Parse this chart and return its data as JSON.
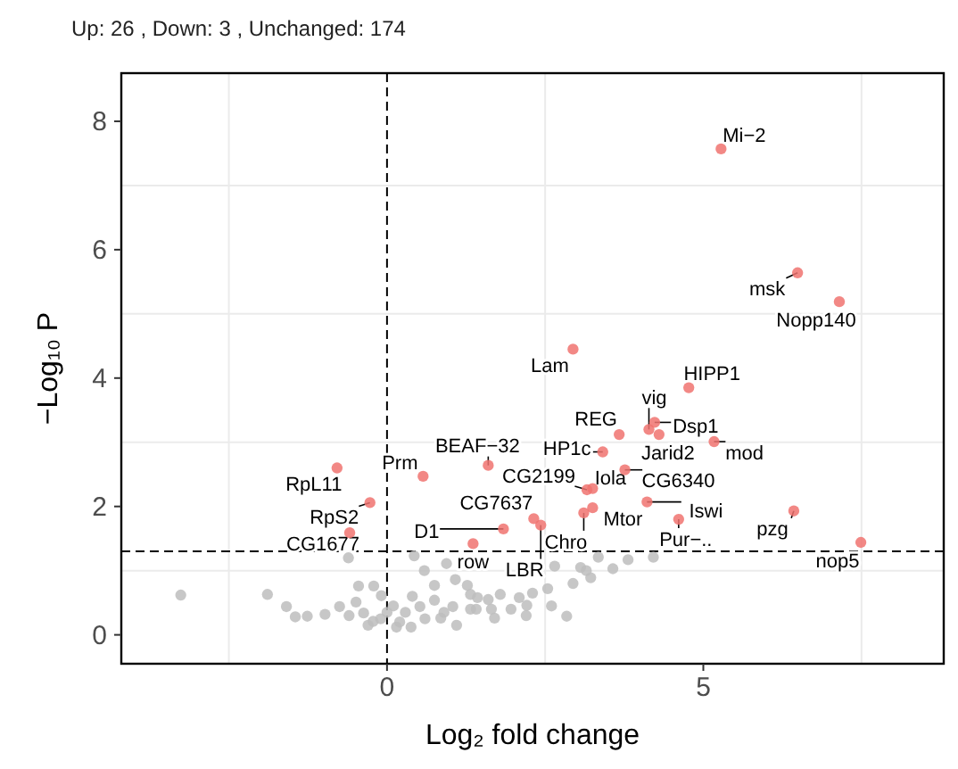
{
  "chart_data": {
    "type": "scatter",
    "subtitle": "Up: 26 ,  Down: 3 ,  Unchanged: 174",
    "xlabel": "Log₂ fold change",
    "ylabel": "−Log₁₀ P",
    "xlim": [
      -4.2,
      8.8
    ],
    "ylim": [
      -0.45,
      8.75
    ],
    "xticks": [
      {
        "value": -2.5,
        "label": null
      },
      0,
      {
        "value": 2.5,
        "label": null
      },
      5,
      {
        "value": 7.5,
        "label": null
      }
    ],
    "yticks": [
      0,
      {
        "value": 1,
        "label": null
      },
      2,
      {
        "value": 3,
        "label": null
      },
      4,
      {
        "value": 5,
        "label": null
      },
      6,
      {
        "value": 7,
        "label": null
      },
      8
    ],
    "grid": true,
    "marker": "circle",
    "ref_lines": [
      {
        "axis": "x",
        "value": 0,
        "line_style": "dashed"
      },
      {
        "axis": "y",
        "value": 1.3,
        "line_style": "dashed"
      }
    ],
    "series": [
      {
        "color": "#bdbdbd",
        "x": [
          -3.26,
          -1.89,
          -1.59,
          -1.45,
          -1.26,
          -0.98,
          -0.75,
          -0.61,
          -0.45,
          -0.21,
          -0.49,
          -0.37,
          -0.09,
          -0.22,
          0,
          0.15,
          0.29,
          0.43,
          0.59,
          0.75,
          0.94,
          1.08,
          0.52,
          0.75,
          1.04,
          0.38,
          0.85,
          1.32,
          1.41,
          2.65,
          3.06,
          3.34,
          3.57,
          3.81,
          4.21,
          2.94,
          3.22,
          3.15,
          2.54,
          2.3,
          2.09,
          2.21,
          1.96,
          1.79,
          1.65,
          1.43,
          1.32,
          1.7,
          2.84,
          1.27,
          -0.3,
          0.1,
          0.2,
          -0.1,
          0.6,
          0.9,
          1.1,
          -0.6,
          0.4,
          1.6,
          2.2,
          2.6
        ],
        "values": [
          0.62,
          0.63,
          0.44,
          0.28,
          0.29,
          0.32,
          0.44,
          1.2,
          0.76,
          0.76,
          0.51,
          0.34,
          0.61,
          0.21,
          0.35,
          0.12,
          0.35,
          1.23,
          1.0,
          0.77,
          1.11,
          0.86,
          0.44,
          0.54,
          0.44,
          0.12,
          0.26,
          0.63,
          0.4,
          1.07,
          1.05,
          1.21,
          1.03,
          1.17,
          1.21,
          0.8,
          0.89,
          1.0,
          0.72,
          0.65,
          0.58,
          0.46,
          0.4,
          0.63,
          0.4,
          0.58,
          0.4,
          0.26,
          0.29,
          0.77,
          0.15,
          0.45,
          0.2,
          0.25,
          0.25,
          0.35,
          0.15,
          0.3,
          0.6,
          0.55,
          0.3,
          0.45
        ]
      },
      {
        "color": "#f07370",
        "x": [
          5.28,
          6.49,
          7.15,
          2.94,
          4.77,
          4.14,
          4.23,
          4.3,
          5.17,
          3.67,
          3.41,
          3.76,
          3.25,
          3.16,
          4.11,
          6.43,
          4.61,
          7.49,
          3.25,
          3.11,
          2.32,
          2.43,
          1.84,
          1.36,
          1.6,
          0.57,
          -0.79,
          -0.27,
          -0.59
        ],
        "values": [
          7.57,
          5.64,
          5.19,
          4.45,
          3.85,
          3.2,
          3.31,
          3.12,
          3.01,
          3.12,
          2.85,
          2.57,
          2.28,
          2.26,
          2.07,
          1.93,
          1.8,
          1.44,
          1.98,
          1.9,
          1.81,
          1.71,
          1.65,
          1.42,
          2.64,
          2.47,
          2.6,
          2.06,
          1.59
        ]
      }
    ],
    "annotations": [
      {
        "text": "Mi−2",
        "x": 5.28,
        "y": 7.57
      },
      {
        "text": "msk",
        "x": 6.49,
        "y": 5.64
      },
      {
        "text": "Nopp140",
        "x": 7.15,
        "y": 5.19
      },
      {
        "text": "Lam",
        "x": 2.94,
        "y": 4.45
      },
      {
        "text": "HIPP1",
        "x": 4.77,
        "y": 3.85
      },
      {
        "text": "vig",
        "x": 4.14,
        "y": 3.2
      },
      {
        "text": "Dsp1",
        "x": 4.23,
        "y": 3.31
      },
      {
        "text": "Jarid2",
        "x": 4.3,
        "y": 3.12
      },
      {
        "text": "mod",
        "x": 5.17,
        "y": 3.01
      },
      {
        "text": "REG",
        "x": 3.67,
        "y": 3.12
      },
      {
        "text": "HP1c",
        "x": 3.41,
        "y": 2.85
      },
      {
        "text": "CG6340",
        "x": 3.76,
        "y": 2.57
      },
      {
        "text": "Iola",
        "x": 3.25,
        "y": 2.28
      },
      {
        "text": "CG2199",
        "x": 3.16,
        "y": 2.26
      },
      {
        "text": "Iswi",
        "x": 4.11,
        "y": 2.07
      },
      {
        "text": "pzg",
        "x": 6.43,
        "y": 1.93
      },
      {
        "text": "Pur−..",
        "x": 4.61,
        "y": 1.8
      },
      {
        "text": "nop5",
        "x": 7.49,
        "y": 1.44
      },
      {
        "text": "Mtor",
        "x": 3.25,
        "y": 1.98
      },
      {
        "text": "Chro",
        "x": 3.11,
        "y": 1.9
      },
      {
        "text": "CG7637",
        "x": 2.32,
        "y": 1.81
      },
      {
        "text": "LBR",
        "x": 2.43,
        "y": 1.71
      },
      {
        "text": "D1",
        "x": 1.84,
        "y": 1.65
      },
      {
        "text": "row",
        "x": 1.36,
        "y": 1.42
      },
      {
        "text": "BEAF−32",
        "x": 1.6,
        "y": 2.64
      },
      {
        "text": "Prm",
        "x": 0.57,
        "y": 2.47
      },
      {
        "text": "RpL11",
        "x": -0.79,
        "y": 2.6
      },
      {
        "text": "RpS2",
        "x": -0.27,
        "y": 2.06
      },
      {
        "text": "CG1677",
        "x": -0.59,
        "y": 1.59
      }
    ]
  }
}
